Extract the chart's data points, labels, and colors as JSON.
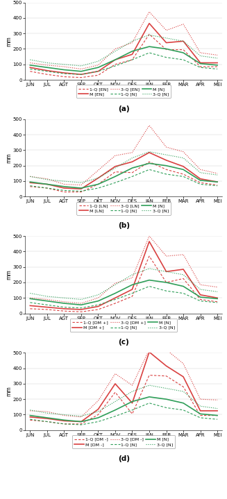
{
  "months": [
    "JUN",
    "JUL",
    "AGT",
    "SEP",
    "OKT",
    "NOV",
    "DES",
    "JAN",
    "FEB",
    "MAR",
    "APR",
    "MEI"
  ],
  "panels": [
    {
      "label": "(a)",
      "legend_event": "EN",
      "legend_normal": "N",
      "ylim": [
        0,
        500
      ],
      "yticks": [
        0,
        100,
        200,
        300,
        400,
        500
      ],
      "EV": {
        "Q1": [
          55,
          35,
          20,
          15,
          30,
          100,
          130,
          295,
          195,
          195,
          85,
          85
        ],
        "M": [
          80,
          60,
          45,
          35,
          55,
          130,
          165,
          365,
          240,
          250,
          110,
          110
        ],
        "Q3": [
          110,
          95,
          85,
          70,
          95,
          200,
          240,
          440,
          320,
          360,
          175,
          160
        ]
      },
      "N": {
        "Q1": [
          70,
          55,
          40,
          35,
          55,
          90,
          130,
          175,
          145,
          130,
          80,
          70
        ],
        "M": [
          95,
          80,
          65,
          55,
          80,
          130,
          185,
          215,
          200,
          175,
          105,
          95
        ],
        "Q3": [
          130,
          110,
          100,
          90,
          120,
          185,
          250,
          290,
          270,
          250,
          155,
          140
        ]
      }
    },
    {
      "label": "(b)",
      "legend_event": "LN",
      "legend_normal": "N",
      "ylim": [
        0,
        500
      ],
      "yticks": [
        0,
        100,
        200,
        300,
        400,
        500
      ],
      "EV": {
        "Q1": [
          65,
          55,
          30,
          30,
          80,
          160,
          155,
          225,
          175,
          145,
          90,
          75
        ],
        "M": [
          90,
          80,
          55,
          50,
          120,
          195,
          225,
          285,
          235,
          195,
          115,
          95
        ],
        "Q3": [
          130,
          115,
          80,
          75,
          170,
          265,
          285,
          460,
          320,
          290,
          175,
          150
        ]
      },
      "N": {
        "Q1": [
          70,
          55,
          40,
          35,
          55,
          90,
          130,
          175,
          145,
          130,
          80,
          70
        ],
        "M": [
          95,
          80,
          65,
          55,
          80,
          130,
          185,
          215,
          200,
          175,
          105,
          95
        ],
        "Q3": [
          130,
          110,
          100,
          90,
          120,
          185,
          250,
          290,
          270,
          250,
          155,
          140
        ]
      }
    },
    {
      "label": "(c)",
      "legend_event": "DM +",
      "legend_normal": "N",
      "ylim": [
        0,
        500
      ],
      "yticks": [
        0,
        100,
        200,
        300,
        400,
        500
      ],
      "EV": {
        "Q1": [
          30,
          25,
          15,
          10,
          25,
          65,
          110,
          370,
          200,
          225,
          90,
          75
        ],
        "M": [
          50,
          40,
          30,
          25,
          45,
          100,
          155,
          465,
          270,
          285,
          120,
          100
        ],
        "Q3": [
          100,
          90,
          75,
          65,
          100,
          195,
          230,
          500,
          370,
          380,
          185,
          170
        ]
      },
      "N": {
        "Q1": [
          70,
          55,
          40,
          35,
          55,
          90,
          130,
          175,
          145,
          130,
          80,
          70
        ],
        "M": [
          95,
          80,
          65,
          55,
          80,
          130,
          185,
          215,
          200,
          175,
          105,
          95
        ],
        "Q3": [
          130,
          110,
          100,
          90,
          120,
          185,
          250,
          290,
          270,
          250,
          155,
          140
        ]
      }
    },
    {
      "label": "(d)",
      "legend_event": "DM -",
      "legend_normal": "N",
      "ylim": [
        0,
        500
      ],
      "yticks": [
        0,
        100,
        200,
        300,
        400,
        500
      ],
      "EV": {
        "Q1": [
          65,
          55,
          40,
          40,
          100,
          245,
          105,
          355,
          350,
          280,
          95,
          95
        ],
        "M": [
          85,
          75,
          60,
          55,
          135,
          300,
          175,
          505,
          415,
          345,
          125,
          125
        ],
        "Q3": [
          125,
          120,
          95,
          85,
          190,
          365,
          290,
          520,
          520,
          430,
          200,
          195
        ]
      },
      "N": {
        "Q1": [
          70,
          55,
          40,
          35,
          55,
          90,
          130,
          175,
          145,
          130,
          80,
          70
        ],
        "M": [
          95,
          80,
          65,
          55,
          80,
          130,
          185,
          215,
          200,
          175,
          105,
          95
        ],
        "Q3": [
          130,
          110,
          100,
          90,
          120,
          185,
          250,
          290,
          270,
          250,
          155,
          140
        ]
      }
    }
  ],
  "color_red": "#d94040",
  "color_green": "#2e9e58",
  "ylabel": "mm"
}
